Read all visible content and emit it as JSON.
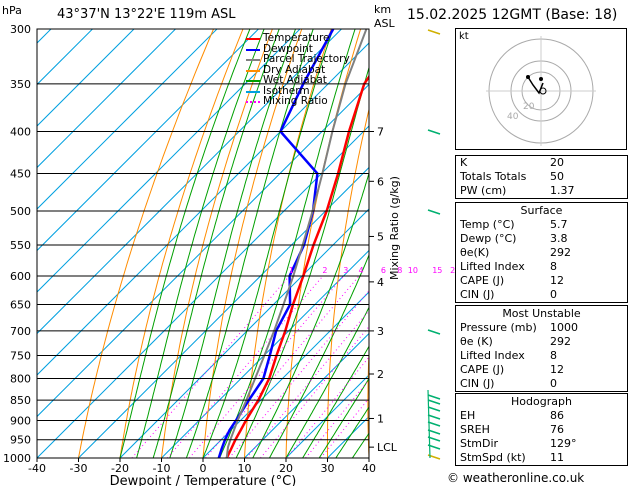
{
  "header": {
    "pressure_unit": "hPa",
    "location": "43°37'N  13°22'E  119m  ASL",
    "height_unit": "km\nASL",
    "height_unit_line1": "km",
    "height_unit_line2": "ASL",
    "datetime": "15.02.2025  12GMT  (Base: 18)"
  },
  "legend": [
    {
      "label": "Temperature",
      "color": "#ff0000",
      "style": "solid"
    },
    {
      "label": "Dewpoint",
      "color": "#0000ff",
      "style": "solid"
    },
    {
      "label": "Parcel Trajectory",
      "color": "#808080",
      "style": "solid"
    },
    {
      "label": "Dry Adiabat",
      "color": "#ff8c00",
      "style": "solid"
    },
    {
      "label": "Wet Adiabat",
      "color": "#00a000",
      "style": "solid"
    },
    {
      "label": "Isotherm",
      "color": "#00a0e0",
      "style": "solid"
    },
    {
      "label": "Mixing Ratio",
      "color": "#ff00ff",
      "style": "dotted"
    }
  ],
  "chart_data": {
    "type": "line",
    "xlabel": "Dewpoint / Temperature (°C)",
    "ylabel": "hPa",
    "right_axis_label": "Mixing Ratio (g/kg)",
    "x_ticks": [
      -40,
      -30,
      -20,
      -10,
      0,
      10,
      20,
      30,
      40
    ],
    "xlim": [
      -40,
      40
    ],
    "pressure_levels": [
      300,
      350,
      400,
      450,
      500,
      550,
      600,
      650,
      700,
      750,
      800,
      850,
      900,
      950,
      1000
    ],
    "height_km_ticks": [
      {
        "label": "7",
        "p": 400
      },
      {
        "label": "6",
        "p": 460
      },
      {
        "label": "5",
        "p": 537
      },
      {
        "label": "4",
        "p": 610
      },
      {
        "label": "3",
        "p": 700
      },
      {
        "label": "2",
        "p": 790
      },
      {
        "label": "1",
        "p": 895
      },
      {
        "label": "LCL",
        "p": 970
      }
    ],
    "mixing_ratio_labels": [
      "1",
      "2",
      "3",
      "4",
      "6",
      "8",
      "10",
      "15",
      "20",
      "25"
    ],
    "series": [
      {
        "name": "Temperature",
        "color": "#ff0000",
        "p": [
          1000,
          975,
          950,
          925,
          900,
          850,
          800,
          750,
          700,
          650,
          600,
          550,
          500,
          450,
          400,
          350,
          300
        ],
        "t": [
          5.7,
          4.6,
          3.4,
          2.4,
          1.3,
          -0.6,
          -3.2,
          -7.0,
          -10.8,
          -15.3,
          -19.7,
          -24.7,
          -29.7,
          -36.0,
          -43.5,
          -51.3,
          -55.6
        ]
      },
      {
        "name": "Dewpoint",
        "color": "#0000ff",
        "p": [
          1000,
          975,
          950,
          925,
          900,
          850,
          800,
          750,
          700,
          650,
          600,
          550,
          500,
          450,
          400,
          350,
          300
        ],
        "t": [
          3.8,
          2.3,
          0.9,
          -0.3,
          -1.1,
          -2.9,
          -4.6,
          -8.6,
          -13.0,
          -16.0,
          -23.0,
          -27.0,
          -33.0,
          -41.0,
          -60.0,
          -66.0,
          -72.0
        ]
      },
      {
        "name": "Parcel Trajectory",
        "color": "#808080",
        "p": [
          1000,
          970,
          950,
          900,
          850,
          800,
          750,
          700,
          650,
          600,
          550,
          500,
          450,
          400,
          350,
          300
        ],
        "t": [
          5.7,
          3.4,
          2.2,
          -0.7,
          -3.5,
          -6.6,
          -9.9,
          -13.5,
          -17.6,
          -22.1,
          -27.3,
          -33.1,
          -39.8,
          -47.5,
          -55.8,
          -64.0
        ]
      }
    ]
  },
  "indices": {
    "rows": [
      {
        "key": "K",
        "value": "20"
      },
      {
        "key": "Totals Totals",
        "value": "50"
      },
      {
        "key": "PW (cm)",
        "value": "1.37"
      }
    ]
  },
  "surface": {
    "title": "Surface",
    "rows": [
      {
        "key": "Temp (°C)",
        "value": "5.7"
      },
      {
        "key": "Dewp (°C)",
        "value": "3.8"
      },
      {
        "key": "θe(K)",
        "value": "292"
      },
      {
        "key": "Lifted Index",
        "value": "8"
      },
      {
        "key": "CAPE (J)",
        "value": "12"
      },
      {
        "key": "CIN (J)",
        "value": "0"
      }
    ]
  },
  "most_unstable": {
    "title": "Most Unstable",
    "rows": [
      {
        "key": "Pressure (mb)",
        "value": "1000"
      },
      {
        "key": "θe (K)",
        "value": "292"
      },
      {
        "key": "Lifted Index",
        "value": "8"
      },
      {
        "key": "CAPE (J)",
        "value": "12"
      },
      {
        "key": "CIN (J)",
        "value": "0"
      }
    ]
  },
  "hodograph": {
    "title": "Hodograph",
    "unit_label": "kt",
    "ring_labels": [
      "20",
      "40"
    ],
    "rows": [
      {
        "key": "EH",
        "value": "86"
      },
      {
        "key": "SREH",
        "value": "76"
      },
      {
        "key": "StmDir",
        "value": "129°"
      },
      {
        "key": "StmSpd (kt)",
        "value": "11"
      }
    ]
  },
  "footer": {
    "copyright": "© weatheronline.co.uk"
  }
}
